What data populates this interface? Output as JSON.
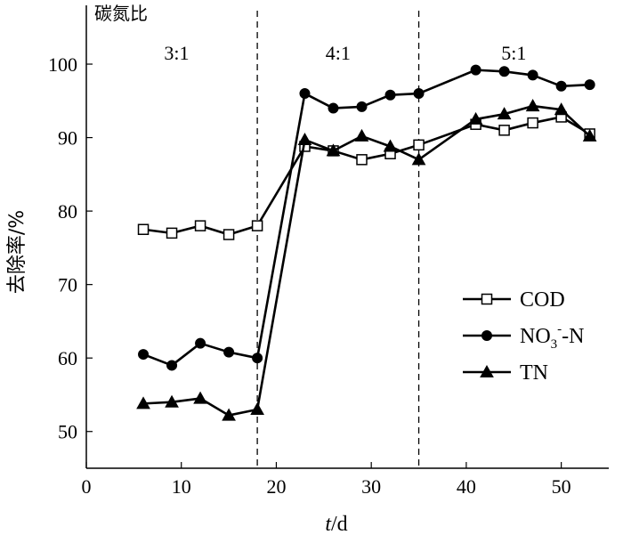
{
  "chart_data": {
    "type": "line",
    "ylabel": "去除率/%",
    "xlabel_italic": "t",
    "xlabel_unit": "/d",
    "xlim": [
      0,
      55
    ],
    "ylim": [
      45,
      108
    ],
    "x_ticks": [
      0,
      10,
      20,
      30,
      40,
      50
    ],
    "y_ticks": [
      50,
      60,
      70,
      80,
      90,
      100
    ],
    "grid": false,
    "legend_position": "right-middle",
    "group_title": "碳氮比",
    "phases": [
      {
        "label": "3:1",
        "x_center": 9.5
      },
      {
        "label": "4:1",
        "x_center": 26.5
      },
      {
        "label": "5:1",
        "x_center": 45
      }
    ],
    "phase_boundaries": [
      18,
      35
    ],
    "x": [
      6,
      9,
      12,
      15,
      18,
      23,
      26,
      29,
      32,
      35,
      41,
      44,
      47,
      50,
      53
    ],
    "series": [
      {
        "name": "COD",
        "marker": "square-open",
        "values": [
          77.5,
          77,
          78,
          76.8,
          78,
          88.8,
          88.2,
          87,
          87.8,
          89,
          91.8,
          91,
          92,
          92.8,
          90.5
        ]
      },
      {
        "name_main": "NO",
        "name_sub": "3",
        "name_sup": "-",
        "name_tail": "-N",
        "marker": "circle-filled",
        "values": [
          60.5,
          59,
          62,
          60.8,
          60,
          96,
          94,
          94.2,
          95.8,
          96,
          99.2,
          99,
          98.5,
          97,
          97.2
        ]
      },
      {
        "name": "TN",
        "marker": "triangle-filled",
        "values": [
          53.8,
          54,
          54.5,
          52.2,
          53,
          89.7,
          88.2,
          90.2,
          88.8,
          87,
          92.5,
          93.2,
          94.3,
          93.8,
          90.2
        ]
      }
    ]
  }
}
